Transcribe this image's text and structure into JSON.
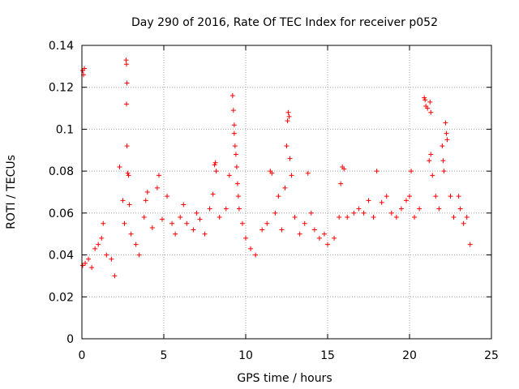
{
  "chart_data": {
    "type": "scatter",
    "title": "Day 290 of 2016, Rate Of TEC Index for receiver p052",
    "xlabel": "GPS time / hours",
    "ylabel": "ROTI / TECUs",
    "xlim": [
      0,
      25
    ],
    "ylim": [
      0,
      0.14
    ],
    "grid": true,
    "marker": "+",
    "marker_color": "#ff0000",
    "x_ticks": [
      0,
      5,
      10,
      15,
      20,
      25
    ],
    "x_tick_labels": [
      "0",
      "5",
      "10",
      "15",
      "20",
      "25"
    ],
    "y_ticks": [
      0,
      0.02,
      0.04,
      0.06,
      0.08,
      0.1,
      0.12,
      0.14
    ],
    "y_tick_labels": [
      "0",
      "0.02",
      "0.04",
      "0.06",
      "0.08",
      "0.1",
      "0.12",
      "0.14"
    ],
    "series": [
      {
        "name": "ROTI",
        "points": [
          [
            0.05,
            0.128
          ],
          [
            0.1,
            0.126
          ],
          [
            0.15,
            0.129
          ],
          [
            0.05,
            0.035
          ],
          [
            0.2,
            0.036
          ],
          [
            0.4,
            0.038
          ],
          [
            0.6,
            0.034
          ],
          [
            0.8,
            0.043
          ],
          [
            1.0,
            0.045
          ],
          [
            1.2,
            0.048
          ],
          [
            1.3,
            0.055
          ],
          [
            1.5,
            0.04
          ],
          [
            1.8,
            0.038
          ],
          [
            2.0,
            0.03
          ],
          [
            2.3,
            0.082
          ],
          [
            2.5,
            0.066
          ],
          [
            2.6,
            0.055
          ],
          [
            2.7,
            0.133
          ],
          [
            2.72,
            0.131
          ],
          [
            2.75,
            0.122
          ],
          [
            2.72,
            0.112
          ],
          [
            2.75,
            0.092
          ],
          [
            2.8,
            0.079
          ],
          [
            2.85,
            0.078
          ],
          [
            2.9,
            0.064
          ],
          [
            3.0,
            0.05
          ],
          [
            3.3,
            0.045
          ],
          [
            3.5,
            0.04
          ],
          [
            3.8,
            0.058
          ],
          [
            3.9,
            0.066
          ],
          [
            4.0,
            0.07
          ],
          [
            4.3,
            0.053
          ],
          [
            4.6,
            0.072
          ],
          [
            4.7,
            0.078
          ],
          [
            4.9,
            0.057
          ],
          [
            5.2,
            0.068
          ],
          [
            5.5,
            0.055
          ],
          [
            5.7,
            0.05
          ],
          [
            6.0,
            0.058
          ],
          [
            6.2,
            0.064
          ],
          [
            6.4,
            0.055
          ],
          [
            6.8,
            0.052
          ],
          [
            7.0,
            0.06
          ],
          [
            7.2,
            0.057
          ],
          [
            7.5,
            0.05
          ],
          [
            7.8,
            0.062
          ],
          [
            8.0,
            0.069
          ],
          [
            8.1,
            0.083
          ],
          [
            8.15,
            0.084
          ],
          [
            8.2,
            0.08
          ],
          [
            8.4,
            0.058
          ],
          [
            8.8,
            0.062
          ],
          [
            9.0,
            0.078
          ],
          [
            9.2,
            0.116
          ],
          [
            9.25,
            0.109
          ],
          [
            9.3,
            0.102
          ],
          [
            9.3,
            0.098
          ],
          [
            9.35,
            0.092
          ],
          [
            9.4,
            0.088
          ],
          [
            9.45,
            0.082
          ],
          [
            9.5,
            0.074
          ],
          [
            9.55,
            0.068
          ],
          [
            9.6,
            0.062
          ],
          [
            9.8,
            0.055
          ],
          [
            10.0,
            0.048
          ],
          [
            10.3,
            0.043
          ],
          [
            10.6,
            0.04
          ],
          [
            11.0,
            0.052
          ],
          [
            11.3,
            0.055
          ],
          [
            11.5,
            0.08
          ],
          [
            11.6,
            0.079
          ],
          [
            11.8,
            0.06
          ],
          [
            12.0,
            0.068
          ],
          [
            12.2,
            0.052
          ],
          [
            12.4,
            0.072
          ],
          [
            12.5,
            0.092
          ],
          [
            12.55,
            0.104
          ],
          [
            12.6,
            0.108
          ],
          [
            12.65,
            0.106
          ],
          [
            12.7,
            0.086
          ],
          [
            12.8,
            0.078
          ],
          [
            13.0,
            0.058
          ],
          [
            13.3,
            0.05
          ],
          [
            13.6,
            0.055
          ],
          [
            13.8,
            0.079
          ],
          [
            14.0,
            0.06
          ],
          [
            14.2,
            0.052
          ],
          [
            14.5,
            0.048
          ],
          [
            14.8,
            0.05
          ],
          [
            15.0,
            0.045
          ],
          [
            15.4,
            0.048
          ],
          [
            15.7,
            0.058
          ],
          [
            15.8,
            0.074
          ],
          [
            15.9,
            0.082
          ],
          [
            16.0,
            0.081
          ],
          [
            16.2,
            0.058
          ],
          [
            16.6,
            0.06
          ],
          [
            16.9,
            0.062
          ],
          [
            17.2,
            0.06
          ],
          [
            17.5,
            0.066
          ],
          [
            17.8,
            0.058
          ],
          [
            18.0,
            0.08
          ],
          [
            18.3,
            0.065
          ],
          [
            18.6,
            0.068
          ],
          [
            18.9,
            0.06
          ],
          [
            19.2,
            0.058
          ],
          [
            19.5,
            0.062
          ],
          [
            19.8,
            0.066
          ],
          [
            20.0,
            0.068
          ],
          [
            20.1,
            0.08
          ],
          [
            20.3,
            0.058
          ],
          [
            20.6,
            0.062
          ],
          [
            20.9,
            0.115
          ],
          [
            20.95,
            0.114
          ],
          [
            21.0,
            0.111
          ],
          [
            21.1,
            0.11
          ],
          [
            21.25,
            0.113
          ],
          [
            21.3,
            0.108
          ],
          [
            21.2,
            0.085
          ],
          [
            21.3,
            0.088
          ],
          [
            21.4,
            0.078
          ],
          [
            21.6,
            0.068
          ],
          [
            21.8,
            0.062
          ],
          [
            22.0,
            0.092
          ],
          [
            22.05,
            0.085
          ],
          [
            22.1,
            0.08
          ],
          [
            22.2,
            0.103
          ],
          [
            22.25,
            0.098
          ],
          [
            22.3,
            0.095
          ],
          [
            22.5,
            0.068
          ],
          [
            22.7,
            0.058
          ],
          [
            23.0,
            0.068
          ],
          [
            23.1,
            0.062
          ],
          [
            23.3,
            0.055
          ],
          [
            23.5,
            0.058
          ],
          [
            23.7,
            0.045
          ]
        ]
      }
    ]
  }
}
